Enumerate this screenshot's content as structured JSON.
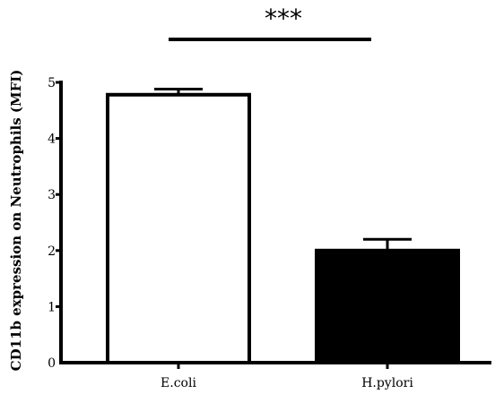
{
  "chart_data": {
    "type": "bar",
    "categories": [
      "E.coli",
      "H.pylori"
    ],
    "values": [
      4.78,
      2.0
    ],
    "errors": [
      0.1,
      0.2
    ],
    "bar_fill": [
      "#ffffff",
      "#000000"
    ],
    "bar_stroke": "#000000",
    "ylabel": "CD11b expression on Neutrophils (MFI)",
    "xlabel": "",
    "ylim": [
      0,
      5
    ],
    "yticks": [
      0,
      1,
      2,
      3,
      4,
      5
    ],
    "ytick_labels": [
      "0",
      "1",
      "2",
      "3",
      "4",
      "5"
    ],
    "grid": false,
    "annotation": "***"
  }
}
